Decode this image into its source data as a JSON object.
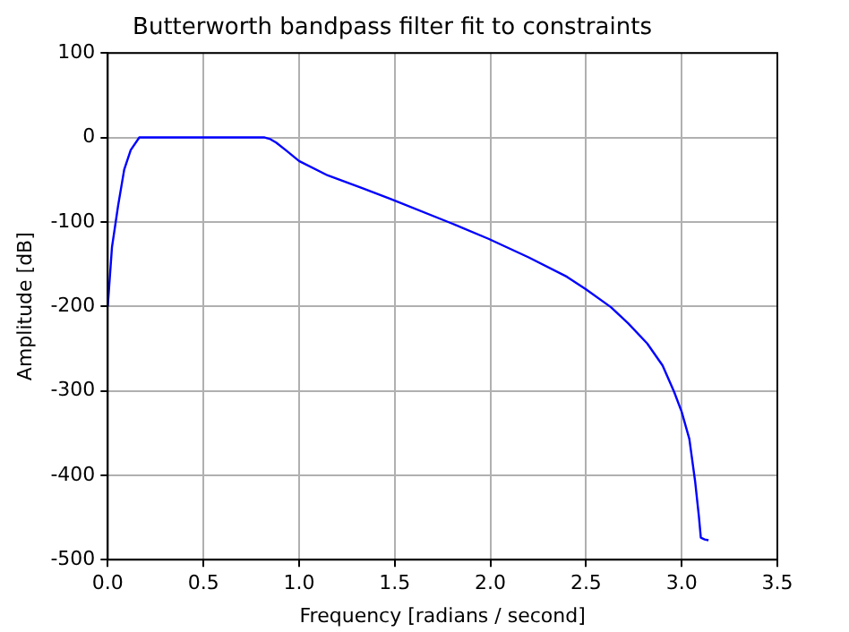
{
  "chart_data": {
    "type": "line",
    "title": "Butterworth bandpass filter fit to constraints",
    "xlabel": "Frequency [radians / second]",
    "ylabel": "Amplitude [dB]",
    "series": [
      {
        "color": "#0000ff",
        "x": [
          0,
          0.022,
          0.054,
          0.086,
          0.12,
          0.165,
          0.4,
          0.6,
          0.82,
          0.85,
          0.88,
          0.93,
          1.0,
          1.15,
          1.33,
          1.48,
          1.8,
          1.99,
          2.2,
          2.4,
          2.5,
          2.63,
          2.72,
          2.82,
          2.9,
          2.96,
          3.0,
          3.04,
          3.07,
          3.09,
          3.1,
          3.12,
          3.14
        ],
        "values": [
          -200,
          -130,
          -81,
          -38,
          -15,
          0,
          0,
          0,
          0,
          -2,
          -6,
          -15,
          -28,
          -45,
          -60,
          -73,
          -102,
          -120,
          -142,
          -165,
          -180,
          -201,
          -220,
          -244,
          -270,
          -301,
          -325,
          -357,
          -407,
          -449,
          -474,
          -476,
          -477
        ]
      }
    ],
    "xlim": [
      0,
      3.5
    ],
    "xticks": [
      {
        "value": 0,
        "label": "0.0"
      },
      0.5,
      {
        "value": 1,
        "label": "1.0"
      },
      1.5,
      {
        "value": 2,
        "label": "2.0"
      },
      2.5,
      {
        "value": 3,
        "label": "3.0"
      },
      3.5
    ],
    "ylim": [
      -500,
      100
    ],
    "yticks": [
      -500,
      -400,
      -300,
      -200,
      -100,
      0,
      100
    ],
    "grid": true,
    "marker": "none",
    "line_style": "solid"
  }
}
